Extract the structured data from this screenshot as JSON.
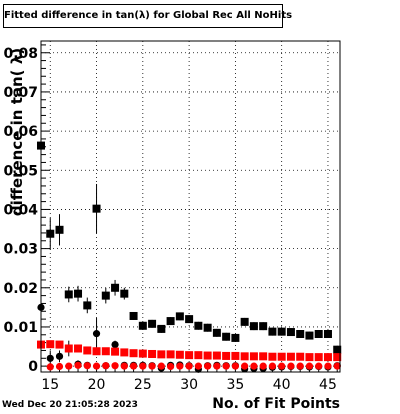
{
  "chart_data": {
    "type": "scatter",
    "title": "Fitted difference in tan(λ) for Global Rec All NoHits",
    "xlabel": "No. of Fit Points",
    "ylabel": "difference in tan( λ)",
    "xlim": [
      14,
      46.3
    ],
    "ylim": [
      -0.0015,
      0.083
    ],
    "x_ticks": [
      15,
      20,
      25,
      30,
      35,
      40,
      45
    ],
    "y_ticks": [
      0,
      0.01,
      0.02,
      0.03,
      0.04,
      0.05,
      0.06,
      0.07,
      0.08
    ],
    "y_tick_labels": [
      "0",
      "0.01",
      "0.02",
      "0.03",
      "0.04",
      "0.05",
      "0.06",
      "0.07",
      "0.08"
    ],
    "grid": true,
    "series": [
      {
        "marker": "square",
        "color": "#000000",
        "points": [
          {
            "x": 14,
            "y": 0.0563,
            "err": 0.0155
          },
          {
            "x": 15,
            "y": 0.0338,
            "err": 0.004
          },
          {
            "x": 16,
            "y": 0.0348,
            "err": 0.004
          },
          {
            "x": 17,
            "y": 0.0183,
            "err": 0.002
          },
          {
            "x": 18,
            "y": 0.0185,
            "err": 0.002
          },
          {
            "x": 19,
            "y": 0.0155,
            "err": 0.002
          },
          {
            "x": 20,
            "y": 0.0402,
            "err": 0.0063
          },
          {
            "x": 21,
            "y": 0.018,
            "err": 0.002
          },
          {
            "x": 22,
            "y": 0.02,
            "err": 0.002
          },
          {
            "x": 23,
            "y": 0.0185,
            "err": 0.0015
          },
          {
            "x": 24,
            "y": 0.0128,
            "err": 0.001
          },
          {
            "x": 25,
            "y": 0.0103,
            "err": 0.001
          },
          {
            "x": 26,
            "y": 0.0108,
            "err": 0.001
          },
          {
            "x": 27,
            "y": 0.0095,
            "err": 0.001
          },
          {
            "x": 28,
            "y": 0.0115,
            "err": 0.001
          },
          {
            "x": 29,
            "y": 0.0127,
            "err": 0.001
          },
          {
            "x": 30,
            "y": 0.012,
            "err": 0.001
          },
          {
            "x": 31,
            "y": 0.0103,
            "err": 0.001
          },
          {
            "x": 32,
            "y": 0.0098,
            "err": 0.001
          },
          {
            "x": 33,
            "y": 0.0085,
            "err": 0.001
          },
          {
            "x": 34,
            "y": 0.0075,
            "err": 0.001
          },
          {
            "x": 35,
            "y": 0.0072,
            "err": 0.001
          },
          {
            "x": 36,
            "y": 0.0113,
            "err": 0.001
          },
          {
            "x": 37,
            "y": 0.0102,
            "err": 0.001
          },
          {
            "x": 38,
            "y": 0.0102,
            "err": 0.001
          },
          {
            "x": 39,
            "y": 0.0088,
            "err": 0.001
          },
          {
            "x": 40,
            "y": 0.0088,
            "err": 0.001
          },
          {
            "x": 41,
            "y": 0.0087,
            "err": 0.001
          },
          {
            "x": 42,
            "y": 0.0082,
            "err": 0.001
          },
          {
            "x": 43,
            "y": 0.0078,
            "err": 0.001
          },
          {
            "x": 44,
            "y": 0.0082,
            "err": 0.001
          },
          {
            "x": 45,
            "y": 0.0082,
            "err": 0.001
          },
          {
            "x": 46,
            "y": 0.0042,
            "err": 0.001
          }
        ]
      },
      {
        "marker": "circle",
        "color": "#000000",
        "points": [
          {
            "x": 14,
            "y": 0.015,
            "err": 0.0015
          },
          {
            "x": 15,
            "y": 0.002,
            "err": 0.002
          },
          {
            "x": 16,
            "y": 0.0025,
            "err": 0.0015
          },
          {
            "x": 17,
            "y": 0.0045,
            "err": 0.002
          },
          {
            "x": 18,
            "y": 0.0005,
            "err": 0.001
          },
          {
            "x": 19,
            "y": 0.0002,
            "err": 0.0005
          },
          {
            "x": 20,
            "y": 0.0083,
            "err": 0.004
          },
          {
            "x": 21,
            "y": 0.0001,
            "err": 0.0005
          },
          {
            "x": 22,
            "y": 0.0055,
            "err": 0.001
          },
          {
            "x": 23,
            "y": 0.0002,
            "err": 0.0005
          },
          {
            "x": 24,
            "y": 0.0002,
            "err": 0.0005
          },
          {
            "x": 25,
            "y": 0.0002,
            "err": 0.0005
          },
          {
            "x": 26,
            "y": 0.0001,
            "err": 0.0005
          },
          {
            "x": 27,
            "y": -0.0005,
            "err": 0.0005
          },
          {
            "x": 28,
            "y": 0.0002,
            "err": 0.0005
          },
          {
            "x": 29,
            "y": 0.0003,
            "err": 0.0005
          },
          {
            "x": 30,
            "y": 0.0001,
            "err": 0.0005
          },
          {
            "x": 31,
            "y": -0.0008,
            "err": 0.0005
          },
          {
            "x": 32,
            "y": 0.0001,
            "err": 0.0005
          },
          {
            "x": 33,
            "y": 0.0002,
            "err": 0.0005
          },
          {
            "x": 34,
            "y": 0.0001,
            "err": 0.0005
          },
          {
            "x": 35,
            "y": 0.0001,
            "err": 0.0005
          },
          {
            "x": 36,
            "y": -0.0007,
            "err": 0.0005
          },
          {
            "x": 37,
            "y": -0.0006,
            "err": 0.0005
          },
          {
            "x": 38,
            "y": -0.0006,
            "err": 0.0005
          },
          {
            "x": 39,
            "y": -0.0003,
            "err": 0.0005
          },
          {
            "x": 40,
            "y": -0.0002,
            "err": 0.0005
          },
          {
            "x": 41,
            "y": -0.0001,
            "err": 0.0005
          },
          {
            "x": 42,
            "y": -0.0001,
            "err": 0.0005
          },
          {
            "x": 43,
            "y": -0.0002,
            "err": 0.0005
          },
          {
            "x": 44,
            "y": -0.0001,
            "err": 0.0005
          },
          {
            "x": 45,
            "y": -0.0002,
            "err": 0.0005
          },
          {
            "x": 46,
            "y": 0.0001,
            "err": 0.0005
          }
        ]
      },
      {
        "marker": "square",
        "color": "#ff0000",
        "points": [
          {
            "x": 14,
            "y": 0.0055
          },
          {
            "x": 15,
            "y": 0.0056
          },
          {
            "x": 16,
            "y": 0.0055
          },
          {
            "x": 17,
            "y": 0.0045
          },
          {
            "x": 18,
            "y": 0.0045
          },
          {
            "x": 19,
            "y": 0.004
          },
          {
            "x": 20,
            "y": 0.0038
          },
          {
            "x": 21,
            "y": 0.0038
          },
          {
            "x": 22,
            "y": 0.0037
          },
          {
            "x": 23,
            "y": 0.0035
          },
          {
            "x": 24,
            "y": 0.0033
          },
          {
            "x": 25,
            "y": 0.0032
          },
          {
            "x": 26,
            "y": 0.0031
          },
          {
            "x": 27,
            "y": 0.003
          },
          {
            "x": 28,
            "y": 0.003
          },
          {
            "x": 29,
            "y": 0.0029
          },
          {
            "x": 30,
            "y": 0.0028
          },
          {
            "x": 31,
            "y": 0.0028
          },
          {
            "x": 32,
            "y": 0.0027
          },
          {
            "x": 33,
            "y": 0.0027
          },
          {
            "x": 34,
            "y": 0.0026
          },
          {
            "x": 35,
            "y": 0.0026
          },
          {
            "x": 36,
            "y": 0.0025
          },
          {
            "x": 37,
            "y": 0.0025
          },
          {
            "x": 38,
            "y": 0.0025
          },
          {
            "x": 39,
            "y": 0.0024
          },
          {
            "x": 40,
            "y": 0.0024
          },
          {
            "x": 41,
            "y": 0.0024
          },
          {
            "x": 42,
            "y": 0.0024
          },
          {
            "x": 43,
            "y": 0.0023
          },
          {
            "x": 44,
            "y": 0.0023
          },
          {
            "x": 45,
            "y": 0.0023
          },
          {
            "x": 46,
            "y": 0.0023
          }
        ]
      },
      {
        "marker": "circle",
        "color": "#ff0000",
        "points": [
          {
            "x": 15,
            "y": -0.0002
          },
          {
            "x": 16,
            "y": -0.0001
          },
          {
            "x": 17,
            "y": 0.0
          },
          {
            "x": 18,
            "y": 0.0002
          },
          {
            "x": 19,
            "y": 0.0001
          },
          {
            "x": 20,
            "y": 0.0
          },
          {
            "x": 21,
            "y": 0.0001
          },
          {
            "x": 22,
            "y": 0.0001
          },
          {
            "x": 23,
            "y": 0.0
          },
          {
            "x": 24,
            "y": 0.0
          },
          {
            "x": 25,
            "y": 0.0
          },
          {
            "x": 26,
            "y": 0.0
          },
          {
            "x": 27,
            "y": 0.0
          },
          {
            "x": 28,
            "y": -0.0001
          },
          {
            "x": 29,
            "y": 0.0
          },
          {
            "x": 30,
            "y": 0.0
          },
          {
            "x": 31,
            "y": 0.0
          },
          {
            "x": 32,
            "y": 0.0
          },
          {
            "x": 33,
            "y": 0.0
          },
          {
            "x": 34,
            "y": 0.0
          },
          {
            "x": 35,
            "y": 0.0
          },
          {
            "x": 36,
            "y": 0.0
          },
          {
            "x": 37,
            "y": 0.0
          },
          {
            "x": 38,
            "y": 0.0
          },
          {
            "x": 39,
            "y": 0.0
          },
          {
            "x": 40,
            "y": 0.0
          },
          {
            "x": 41,
            "y": 0.0
          },
          {
            "x": 42,
            "y": 0.0
          },
          {
            "x": 43,
            "y": 0.0
          },
          {
            "x": 44,
            "y": 0.0
          },
          {
            "x": 45,
            "y": 0.0
          },
          {
            "x": 46,
            "y": 0.0
          }
        ]
      }
    ]
  },
  "footer": {
    "date": "Wed Dec 20 21:05:28 2023"
  }
}
